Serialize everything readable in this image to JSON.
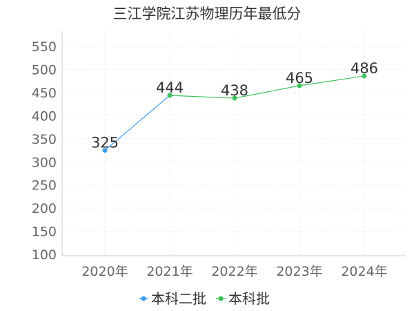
{
  "chart_data": {
    "type": "line",
    "title": "三江学院江苏物理历年最低分",
    "categories": [
      "2020年",
      "2021年",
      "2022年",
      "2023年",
      "2024年"
    ],
    "ylim": [
      100,
      550
    ],
    "yticks": [
      100,
      150,
      200,
      250,
      300,
      350,
      400,
      450,
      500,
      550
    ],
    "grid": true,
    "legend_position": "bottom-center",
    "series": [
      {
        "name": "本科二批",
        "color": "#3d9df0",
        "values": [
          325,
          444,
          null,
          null,
          null
        ]
      },
      {
        "name": "本科批",
        "color": "#3cc25a",
        "values": [
          null,
          444,
          438,
          465,
          486
        ]
      }
    ],
    "data_labels": [
      {
        "category": "2020年",
        "value": 325,
        "text": "325"
      },
      {
        "category": "2021年",
        "value": 444,
        "text": "444"
      },
      {
        "category": "2022年",
        "value": 438,
        "text": "438"
      },
      {
        "category": "2023年",
        "value": 465,
        "text": "465"
      },
      {
        "category": "2024年",
        "value": 486,
        "text": "486"
      }
    ]
  }
}
